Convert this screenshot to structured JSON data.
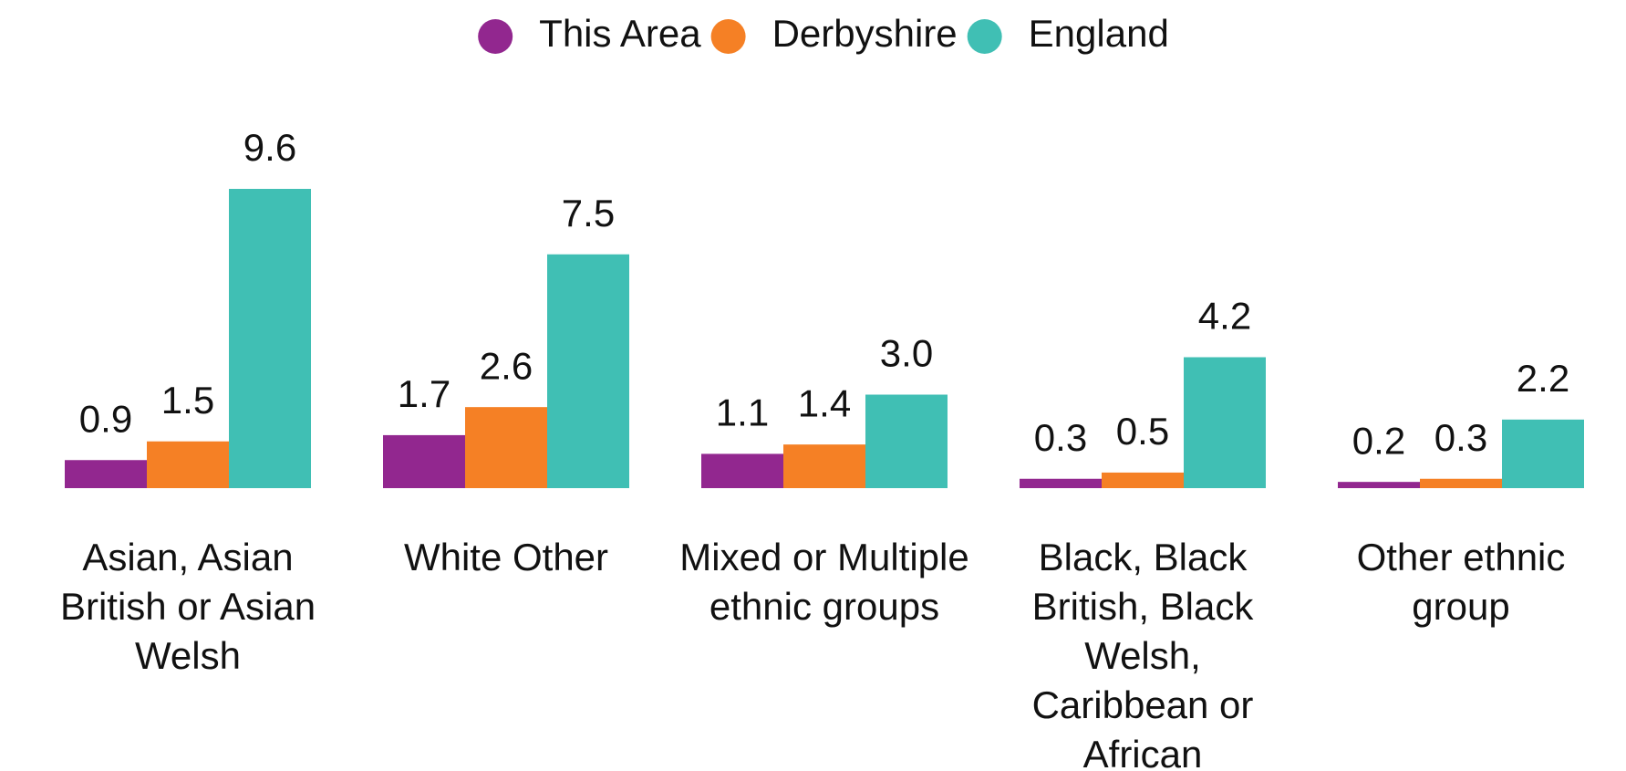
{
  "chart_data": {
    "type": "bar",
    "categories": [
      "Asian, Asian British or Asian Welsh",
      "White Other",
      "Mixed or Multiple ethnic groups",
      "Black, Black British, Black Welsh, Caribbean or African",
      "Other ethnic group"
    ],
    "series": [
      {
        "name": "This Area",
        "color": "#92278f",
        "values": [
          0.9,
          1.7,
          1.1,
          0.3,
          0.2
        ],
        "value_labels": [
          "0.9",
          "1.7",
          "1.1",
          "0.3",
          "0.2"
        ]
      },
      {
        "name": "Derbyshire",
        "color": "#f58025",
        "values": [
          1.5,
          2.6,
          1.4,
          0.5,
          0.3
        ],
        "value_labels": [
          "1.5",
          "2.6",
          "1.4",
          "0.5",
          "0.3"
        ]
      },
      {
        "name": "England",
        "color": "#40bfb4",
        "values": [
          9.6,
          7.5,
          3.0,
          4.2,
          2.2
        ],
        "value_labels": [
          "9.6",
          "7.5",
          "3.0",
          "4.2",
          "2.2"
        ]
      }
    ],
    "legend": "top"
  }
}
